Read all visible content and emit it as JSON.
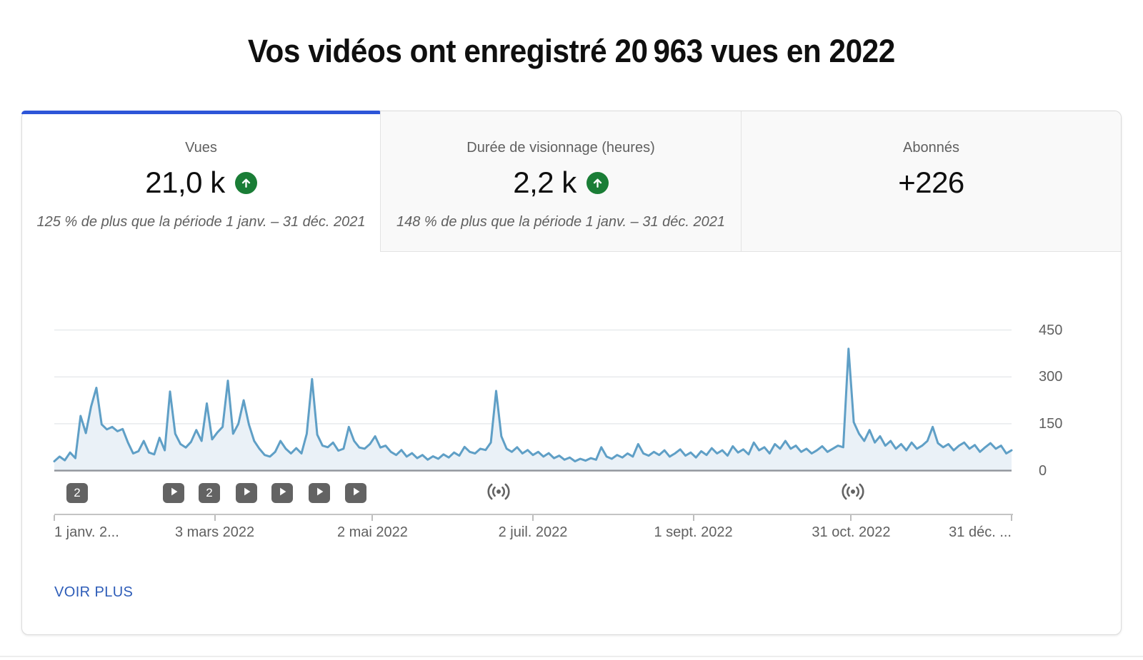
{
  "page": {
    "title": "Vos vidéos ont enregistré 20 963 vues en 2022"
  },
  "colors": {
    "tab_indicator_blue": "#2d55d8",
    "link_blue": "#2d5cb8",
    "trend_green": "#1a7d36",
    "line_blue": "#5f9fc6",
    "area_fill": "#eaf1f7",
    "gridline": "#e8eaed",
    "baseline_gray": "#8f949a",
    "muted_text": "#606060",
    "marker_gray": "#636363"
  },
  "metrics_tabs": [
    {
      "label": "Vues",
      "value": "21,0 k",
      "trend": "up",
      "note": "125 % de plus que la période 1 janv. – 31 déc. 2021",
      "active": true
    },
    {
      "label": "Durée de visionnage (heures)",
      "value": "2,2 k",
      "trend": "up",
      "note": "148 % de plus que la période 1 janv. – 31 déc. 2021",
      "active": false
    },
    {
      "label": "Abonnés",
      "value": "+226",
      "trend": null,
      "note": null,
      "active": false
    }
  ],
  "footer": {
    "see_more": "VOIR PLUS"
  },
  "chart_data": {
    "type": "area",
    "series_name": "Vues",
    "x_range_days": 364,
    "ylim": [
      0,
      480
    ],
    "y_ticks": [
      0,
      150,
      300,
      450
    ],
    "grid": true,
    "legend": "none",
    "x_ticks": [
      {
        "label": "1 janv. 2...",
        "day": 0,
        "align": "left"
      },
      {
        "label": "3 mars 2022",
        "day": 61,
        "align": "center"
      },
      {
        "label": "2 mai 2022",
        "day": 121,
        "align": "center"
      },
      {
        "label": "2 juil. 2022",
        "day": 182,
        "align": "center"
      },
      {
        "label": "1 sept. 2022",
        "day": 243,
        "align": "center"
      },
      {
        "label": "31 oct. 2022",
        "day": 303,
        "align": "center"
      },
      {
        "label": "31 déc. ...",
        "day": 364,
        "align": "right"
      }
    ],
    "values": [
      30,
      45,
      33,
      58,
      40,
      175,
      120,
      205,
      265,
      148,
      132,
      140,
      126,
      133,
      90,
      55,
      62,
      95,
      58,
      52,
      105,
      65,
      253,
      118,
      85,
      74,
      92,
      130,
      95,
      215,
      100,
      122,
      140,
      288,
      118,
      150,
      225,
      148,
      95,
      70,
      50,
      45,
      60,
      95,
      70,
      55,
      72,
      55,
      118,
      293,
      115,
      80,
      75,
      90,
      64,
      70,
      140,
      95,
      74,
      70,
      85,
      110,
      74,
      80,
      60,
      50,
      66,
      45,
      56,
      40,
      50,
      35,
      46,
      38,
      52,
      42,
      58,
      48,
      76,
      60,
      55,
      70,
      66,
      90,
      255,
      110,
      70,
      60,
      75,
      55,
      66,
      50,
      60,
      45,
      56,
      40,
      48,
      35,
      42,
      30,
      38,
      32,
      40,
      35,
      75,
      45,
      38,
      50,
      42,
      55,
      45,
      85,
      55,
      48,
      60,
      50,
      65,
      45,
      55,
      68,
      48,
      58,
      42,
      62,
      50,
      72,
      55,
      65,
      48,
      78,
      58,
      68,
      52,
      90,
      65,
      75,
      55,
      85,
      70,
      95,
      70,
      80,
      60,
      70,
      55,
      65,
      78,
      60,
      70,
      80,
      75,
      390,
      155,
      118,
      95,
      130,
      90,
      110,
      80,
      95,
      70,
      85,
      65,
      90,
      70,
      80,
      95,
      140,
      88,
      75,
      85,
      65,
      80,
      90,
      70,
      82,
      60,
      75,
      88,
      70,
      80,
      55,
      65
    ],
    "markers": [
      {
        "type": "badge",
        "label": "2",
        "x": 32
      },
      {
        "type": "video",
        "x": 167
      },
      {
        "type": "badge",
        "label": "2",
        "x": 217
      },
      {
        "type": "video",
        "x": 269
      },
      {
        "type": "video",
        "x": 319
      },
      {
        "type": "video",
        "x": 371
      },
      {
        "type": "video",
        "x": 422
      },
      {
        "type": "live",
        "x": 622
      },
      {
        "type": "live",
        "x": 1118
      }
    ]
  }
}
